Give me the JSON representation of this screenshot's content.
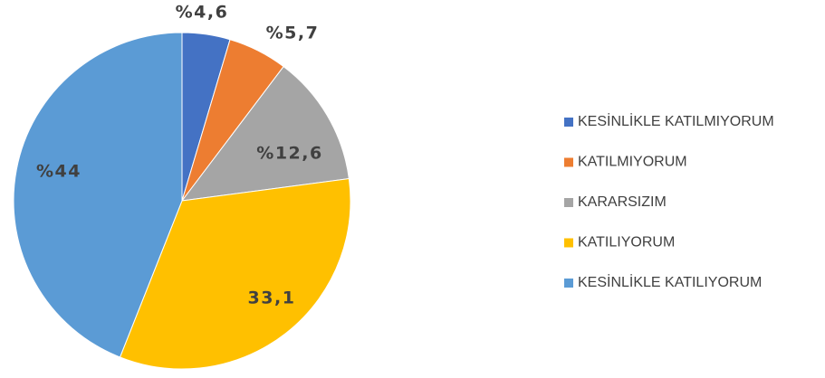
{
  "chart_data": {
    "type": "pie",
    "categories": [
      "KESİNLİKLE KATILMIYORUM",
      "KATILMIYORUM",
      "KARARSIZIM",
      "KATILIYORUM",
      "KESİNLİKLE KATILIYORUM"
    ],
    "values": [
      4.6,
      5.7,
      12.6,
      33.1,
      44
    ],
    "value_labels": [
      "%4,6",
      "%5,7",
      "%12,6",
      "33,1",
      "%44"
    ],
    "colors": [
      "#4472c4",
      "#ed7d31",
      "#a5a5a5",
      "#ffc000",
      "#5b9bd5"
    ],
    "legend": "right"
  }
}
